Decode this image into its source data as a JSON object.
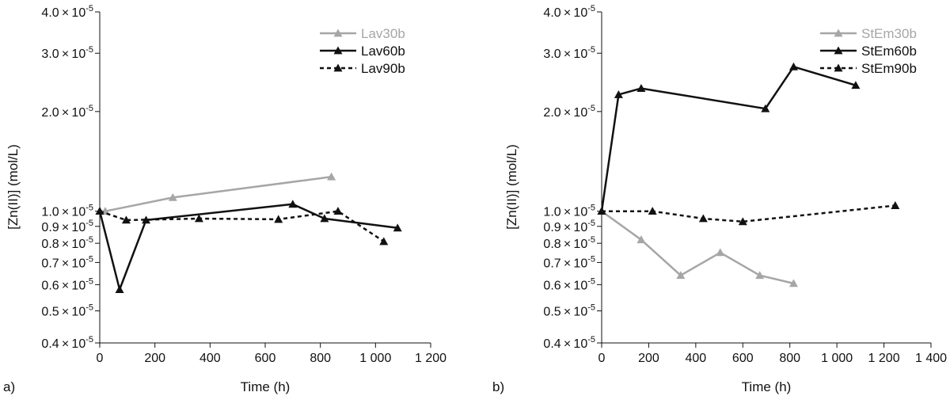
{
  "colors": {
    "gray": "#a6a6a6",
    "black": "#111111"
  },
  "chart_data": [
    {
      "type": "line",
      "panel_label": "a)",
      "xlabel": "Time (h)",
      "ylabel": "[Zn(II)] (mol/L)",
      "yscale": "log",
      "xlim": [
        0,
        1200
      ],
      "ylim": [
        4e-06,
        4e-05
      ],
      "xticks": [
        0,
        200,
        400,
        600,
        800,
        1000,
        1200
      ],
      "xtick_labels": [
        "0",
        "200",
        "400",
        "600",
        "800",
        "1 000",
        "1 200"
      ],
      "yticks": [
        {
          "value": 4e-05,
          "mant": "4.0",
          "exp": "-5"
        },
        {
          "value": 3e-05,
          "mant": "3.0",
          "exp": "-5"
        },
        {
          "value": 2e-05,
          "mant": "2.0",
          "exp": "-5"
        },
        {
          "value": 1e-05,
          "mant": "1.0",
          "exp": "-5"
        },
        {
          "value": 9e-06,
          "mant": "0.9",
          "exp": "-5"
        },
        {
          "value": 8e-06,
          "mant": "0.8",
          "exp": "-5"
        },
        {
          "value": 7e-06,
          "mant": "0.7",
          "exp": "-5"
        },
        {
          "value": 6e-06,
          "mant": "0.6",
          "exp": "-5"
        },
        {
          "value": 5e-06,
          "mant": "0.5",
          "exp": "-5"
        },
        {
          "value": 4e-06,
          "mant": "0.4",
          "exp": "-5"
        }
      ],
      "times_symbol": "×",
      "base": "10",
      "legend_position": "top-right",
      "series": [
        {
          "name": "Lav30b",
          "color": "#a6a6a6",
          "dash": "solid",
          "x": [
            0,
            20,
            265,
            840
          ],
          "y": [
            1e-05,
            1e-05,
            1.1e-05,
            1.27e-05
          ]
        },
        {
          "name": "Lav60b",
          "color": "#111111",
          "dash": "solid",
          "x": [
            0,
            72,
            168,
            700,
            815,
            1080
          ],
          "y": [
            1e-05,
            5.8e-06,
            9.4e-06,
            1.05e-05,
            9.5e-06,
            8.9e-06
          ]
        },
        {
          "name": "Lav90b",
          "color": "#111111",
          "dash": "dashed",
          "x": [
            0,
            96,
            360,
            648,
            864,
            1030
          ],
          "y": [
            1e-05,
            9.4e-06,
            9.5e-06,
            9.45e-06,
            1e-05,
            8.1e-06
          ]
        }
      ]
    },
    {
      "type": "line",
      "panel_label": "b)",
      "xlabel": "Time (h)",
      "ylabel": "[Zn(II)] (mol/L)",
      "yscale": "log",
      "xlim": [
        0,
        1400
      ],
      "ylim": [
        4e-06,
        4e-05
      ],
      "xticks": [
        0,
        200,
        400,
        600,
        800,
        1000,
        1200,
        1400
      ],
      "xtick_labels": [
        "0",
        "200",
        "400",
        "600",
        "800",
        "1 000",
        "1 200",
        "1 400"
      ],
      "yticks": [
        {
          "value": 4e-05,
          "mant": "4.0",
          "exp": "-5"
        },
        {
          "value": 3e-05,
          "mant": "3.0",
          "exp": "-5"
        },
        {
          "value": 2e-05,
          "mant": "2.0",
          "exp": "-5"
        },
        {
          "value": 1e-05,
          "mant": "1.0",
          "exp": "-5"
        },
        {
          "value": 9e-06,
          "mant": "0.9",
          "exp": "-5"
        },
        {
          "value": 8e-06,
          "mant": "0.8",
          "exp": "-5"
        },
        {
          "value": 7e-06,
          "mant": "0.7",
          "exp": "-5"
        },
        {
          "value": 6e-06,
          "mant": "0.6",
          "exp": "-5"
        },
        {
          "value": 5e-06,
          "mant": "0.5",
          "exp": "-5"
        },
        {
          "value": 4e-06,
          "mant": "0.4",
          "exp": "-5"
        }
      ],
      "times_symbol": "×",
      "base": "10",
      "legend_position": "top-right",
      "series": [
        {
          "name": "StEm30b",
          "color": "#a6a6a6",
          "dash": "solid",
          "x": [
            0,
            168,
            336,
            504,
            672,
            816
          ],
          "y": [
            1e-05,
            8.2e-06,
            6.4e-06,
            7.5e-06,
            6.4e-06,
            6.05e-06
          ]
        },
        {
          "name": "StEm60b",
          "color": "#111111",
          "dash": "solid",
          "x": [
            0,
            72,
            168,
            696,
            816,
            1080
          ],
          "y": [
            1e-05,
            2.25e-05,
            2.35e-05,
            2.04e-05,
            2.73e-05,
            2.4e-05
          ]
        },
        {
          "name": "StEm90b",
          "color": "#111111",
          "dash": "dashed",
          "x": [
            0,
            216,
            432,
            600,
            1248
          ],
          "y": [
            1e-05,
            1e-05,
            9.5e-06,
            9.3e-06,
            1.04e-05
          ]
        }
      ]
    }
  ]
}
